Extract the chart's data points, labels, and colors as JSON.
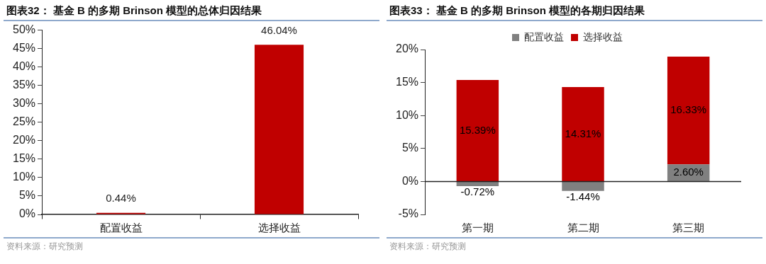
{
  "chart_data": [
    {
      "type": "bar",
      "title": "图表32：  基金 B 的多期 Brinson 模型的总体归因结果",
      "categories": [
        "配置收益",
        "选择收益"
      ],
      "values": [
        0.44,
        46.04
      ],
      "color": "#c00000",
      "value_labels": [
        "0.44%",
        "46.04%"
      ],
      "ylim": [
        0,
        50
      ],
      "yticks": [
        {
          "value": 0,
          "label": "0%"
        },
        {
          "value": 5,
          "label": "5%"
        },
        {
          "value": 10,
          "label": "10%"
        },
        {
          "value": 15,
          "label": "15%"
        },
        {
          "value": 20,
          "label": "20%"
        },
        {
          "value": 25,
          "label": "25%"
        },
        {
          "value": 30,
          "label": "30%"
        },
        {
          "value": 35,
          "label": "35%"
        },
        {
          "value": 40,
          "label": "40%"
        },
        {
          "value": 45,
          "label": "45%"
        },
        {
          "value": 50,
          "label": "50%"
        }
      ],
      "grid": false,
      "legend": false,
      "annotations": [
        "资料来源：研究预测"
      ]
    },
    {
      "type": "bar",
      "title": "图表33：  基金 B 的多期 Brinson 模型的各期归因结果",
      "categories": [
        "第一期",
        "第二期",
        "第三期"
      ],
      "stacked": true,
      "series": [
        {
          "name": "配置收益",
          "color": "#808080",
          "values": [
            -0.72,
            -1.44,
            2.6
          ],
          "value_labels": [
            "-0.72%",
            "-1.44%",
            "2.60%"
          ]
        },
        {
          "name": "选择收益",
          "color": "#c00000",
          "values": [
            15.39,
            14.31,
            16.33
          ],
          "value_labels": [
            "15.39%",
            "14.31%",
            "16.33%"
          ]
        }
      ],
      "ylim": [
        -5,
        20
      ],
      "yticks": [
        {
          "value": -5,
          "label": "-5%"
        },
        {
          "value": 0,
          "label": "0%"
        },
        {
          "value": 5,
          "label": "5%"
        },
        {
          "value": 10,
          "label": "10%"
        },
        {
          "value": 15,
          "label": "15%"
        },
        {
          "value": 20,
          "label": "20%"
        }
      ],
      "grid": false,
      "legend": "top",
      "ref_lines": [
        {
          "axis": "y",
          "value": 0,
          "color": "#222222"
        }
      ],
      "annotations": [
        "资料来源：研究预测"
      ]
    }
  ]
}
